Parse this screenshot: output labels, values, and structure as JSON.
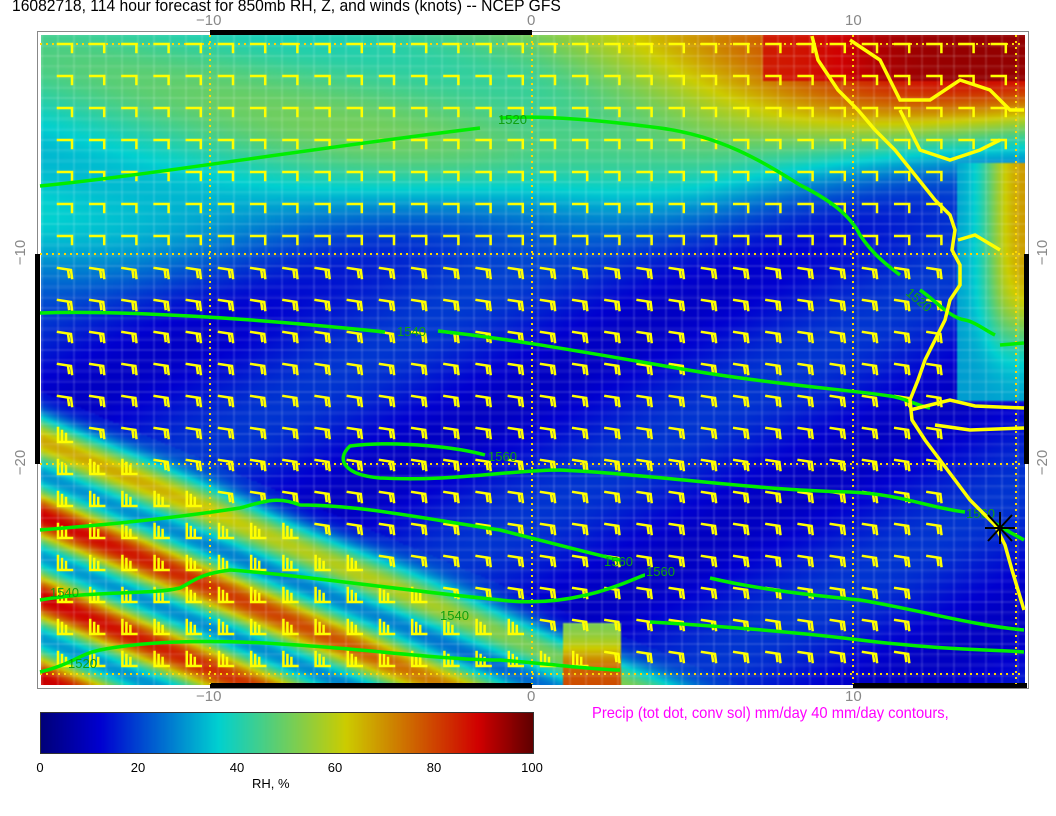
{
  "title": "16082718, 114 hour forecast for 850mb RH, Z, and winds (knots)  -- NCEP GFS",
  "axes": {
    "top_ticks": [
      "−10",
      "0",
      "10"
    ],
    "bottom_ticks": [
      "−10",
      "0",
      "10"
    ],
    "left_ticks": [
      "−10",
      "−20"
    ],
    "right_ticks": [
      "−10",
      "−20"
    ]
  },
  "map": {
    "field": "RH, %",
    "contour_color": "#00ff00",
    "barb_color": "#ffff00",
    "coastline_color": "#ffff00",
    "contour_labels": [
      "1520",
      "1540",
      "1520",
      "1560",
      "1560",
      "1560",
      "1540",
      "1520",
      "1540",
      "1560"
    ]
  },
  "precip_note": "Precip (tot dot, conv sol) mm/day 40 mm/day contours,",
  "colorbar": {
    "ticks": [
      "0",
      "20",
      "40",
      "60",
      "80",
      "100"
    ],
    "label": "RH, %",
    "range": [
      0,
      100
    ],
    "stops": [
      {
        "value": 0,
        "color": "#00007a"
      },
      {
        "value": 12,
        "color": "#0000d0"
      },
      {
        "value": 36,
        "color": "#00d0d0"
      },
      {
        "value": 62,
        "color": "#cccc00"
      },
      {
        "value": 89,
        "color": "#d00000"
      },
      {
        "value": 100,
        "color": "#600000"
      }
    ]
  }
}
